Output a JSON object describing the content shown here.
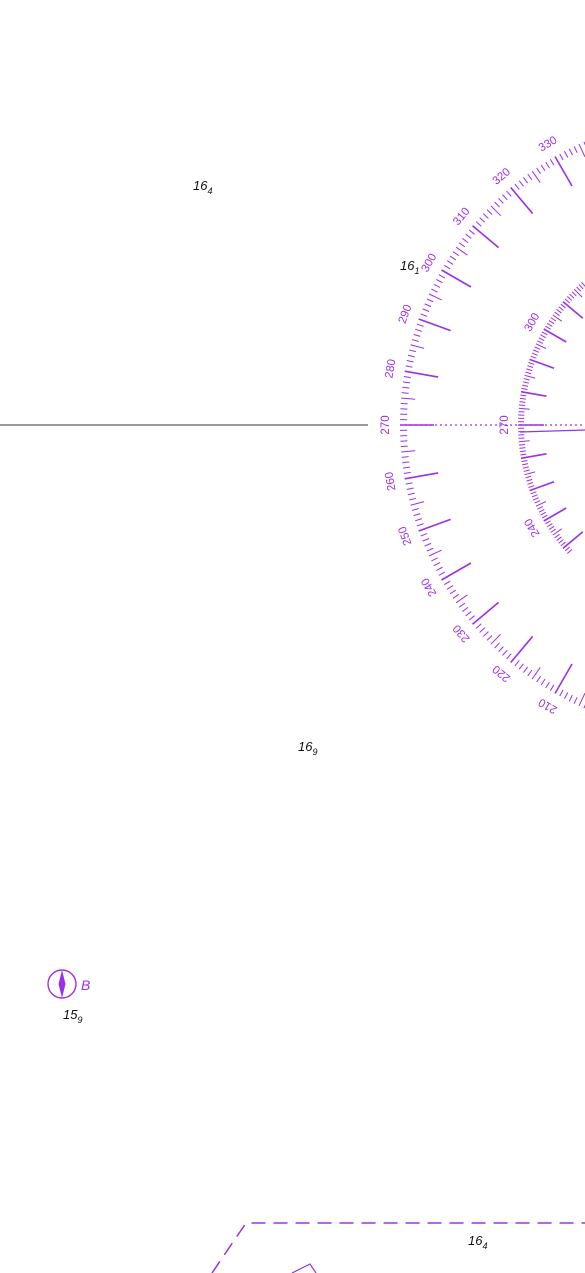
{
  "chart": {
    "colors": {
      "magenta": "#9b30e8",
      "ink": "#111111",
      "background": "#ffffff"
    }
  },
  "soundings": [
    {
      "id": "s1",
      "depth": "16",
      "decimal": "4"
    },
    {
      "id": "s2",
      "depth": "16",
      "decimal": "1"
    },
    {
      "id": "s3",
      "depth": "16",
      "decimal": "9"
    },
    {
      "id": "s4",
      "depth": "15",
      "decimal": "9"
    },
    {
      "id": "s5",
      "depth": "16",
      "decimal": "4"
    }
  ],
  "compass_rose": {
    "outer_ring_labels": [
      "330",
      "320",
      "310",
      "300",
      "290",
      "280",
      "270",
      "260",
      "250",
      "240",
      "230",
      "220",
      "210"
    ],
    "inner_ring_labels": [
      "300",
      "270",
      "240"
    ]
  },
  "buoy": {
    "icon": "buoy-icon",
    "letter": "B"
  }
}
